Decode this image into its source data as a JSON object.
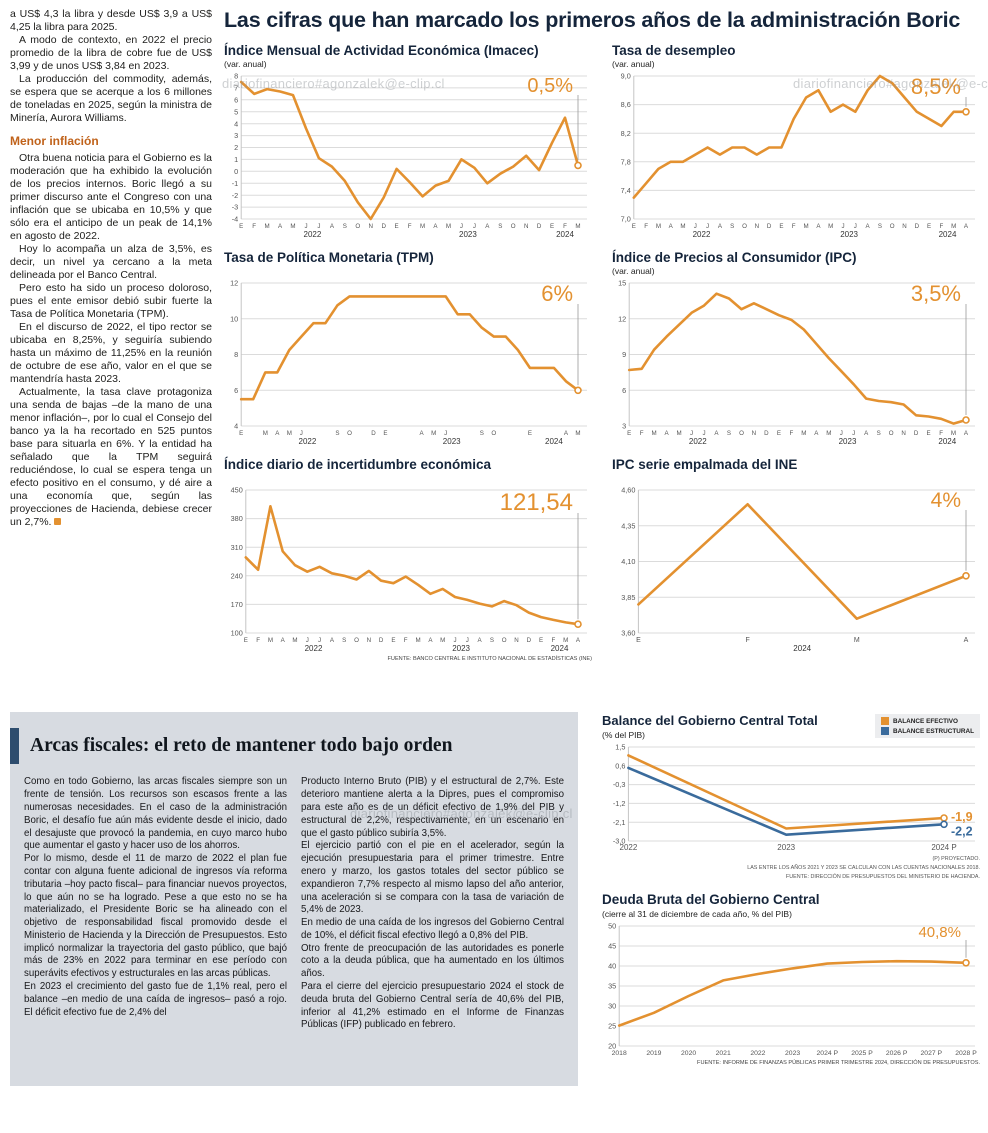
{
  "watermark": "diariofinanciero#agonzalek@e-clip.cl",
  "colors": {
    "orange": "#E39130",
    "blue": "#3A6B9C",
    "navy": "#15253B",
    "subhead_orange": "#C0621A",
    "gray_box": "#D7DBE1",
    "title_bar": "#2E4D6E"
  },
  "headline": "Las cifras que han marcado los primeros años de la administración Boric",
  "left_column": {
    "paragraphs": [
      "a US$ 4,3 la libra y desde US$ 3,9 a US$ 4,25 la libra para 2025.",
      "A modo de contexto, en 2022 el precio promedio de la libra de cobre fue de US$ 3,99 y de unos US$ 3,84 en 2023.",
      "La producción del commodity, además, se espera que se acerque a los 6 millones de toneladas en 2025, según la ministra de Minería, Aurora Williams."
    ],
    "subhead": "Menor inflación",
    "paragraphs2": [
      "Otra buena noticia para el Gobierno es la moderación que ha exhibido la evolución de los precios internos. Boric llegó a su primer discurso ante el Congreso con una inflación que se ubicaba en 10,5% y que sólo era el anticipo de un peak de 14,1% en agosto de 2022.",
      "Hoy lo acompaña un alza de 3,5%, es decir, un nivel ya cercano a la meta delineada por el Banco Central.",
      "Pero esto ha sido un proceso doloroso, pues el ente emisor debió subir fuerte la Tasa de Política Monetaria (TPM).",
      "En el discurso de 2022, el tipo rector se ubicaba en 8,25%, y seguiría subiendo hasta un máximo de 11,25% en la reunión de octubre de ese año, valor en el que se mantendría hasta 2023.",
      "Actualmente, la tasa clave protagoniza una senda de bajas –de la mano de una menor inflación–, por lo cual el Consejo del banco ya la ha recortado en 525 puntos base para situarla en 6%. Y la entidad ha señalado que la TPM seguirá reduciéndose, lo cual se espera tenga un efecto positivo en el consumo, y dé aire a una economía que, según las proyecciones de Hacienda, debiese crecer un 2,7%."
    ]
  },
  "fiscal_box": {
    "title": "Arcas fiscales: el reto de mantener todo bajo orden",
    "col1": [
      "Como en todo Gobierno, las arcas fiscales siempre son un frente de tensión. Los recursos son escasos frente a las numerosas necesidades. En el caso de la administración Boric, el desafío fue aún más evidente desde el inicio, dado el desajuste que provocó la pandemia, en cuyo marco hubo que aumentar el gasto y hacer uso de los ahorros.",
      "Por lo mismo, desde el 11 de marzo de 2022 el plan fue contar con alguna fuente adicional de ingresos vía reforma tributaria –hoy pacto fiscal– para financiar nuevos proyectos, lo que aún no se ha logrado. Pese a que esto no se ha materializado, el Presidente Boric se ha alineado con el objetivo de responsabilidad fiscal promovido desde el Ministerio de Hacienda y la Dirección de Presupuestos. Esto implicó normalizar la trayectoria del gasto público, que bajó más de 23% en 2022 para terminar en ese período con superávits efectivos y estructurales en las arcas públicas.",
      "En 2023 el crecimiento del gasto fue de 1,1% real, pero el balance –en medio de una caída de ingresos– pasó a rojo. El déficit efectivo fue de 2,4% del"
    ],
    "col2": [
      "Producto Interno Bruto (PIB) y el estructural de 2,7%. Este deterioro mantiene alerta a la Dipres, pues el compromiso para este año es de un déficit efectivo de 1,9% del PIB y estructural de 2,2%, respectivamente, en un escenario en que el gasto público subiría 3,5%.",
      "El ejercicio partió con el pie en el acelerador, según la ejecución presupuestaria para el primer trimestre. Entre enero y marzo, los gastos totales del sector público se expandieron 7,7% respecto al mismo lapso del año anterior, una aceleración si se compara con la tasa de variación de 5,4% de 2023.",
      "En medio de una caída de los ingresos del Gobierno Central de 10%, el déficit fiscal efectivo llegó a 0,8% del PIB.",
      "Otro frente de preocupación de las autoridades es ponerle coto a la deuda pública, que ha aumentado en los últimos años.",
      "Para el cierre del ejercicio presupuestario 2024 el stock de deuda bruta del Gobierno Central sería de 40,6% del PIB, inferior al 41,2% estimado en el Informe de Finanzas Públicas (IFP) publicado en febrero."
    ]
  },
  "chart_data": [
    {
      "id": "imacec",
      "type": "line",
      "title": "Índice Mensual de Actividad Económica (Imacec)",
      "subtitle": "(var. anual)",
      "ylim": [
        -4,
        8
      ],
      "yticks": [
        8,
        7,
        6,
        5,
        4,
        3,
        2,
        1,
        0,
        -1,
        -2,
        -3,
        -4
      ],
      "x": [
        "E",
        "F",
        "M",
        "A",
        "M",
        "J",
        "J",
        "A",
        "S",
        "O",
        "N",
        "D",
        "E",
        "F",
        "M",
        "A",
        "M",
        "J",
        "J",
        "A",
        "S",
        "O",
        "N",
        "D",
        "E",
        "F",
        "M"
      ],
      "years": [
        {
          "label": "2022",
          "start": 0,
          "end": 11
        },
        {
          "label": "2023",
          "start": 12,
          "end": 23
        },
        {
          "label": "2024",
          "start": 24,
          "end": 26
        }
      ],
      "values": [
        7.5,
        6.5,
        6.9,
        6.7,
        6.4,
        3.6,
        1.1,
        0.4,
        -0.8,
        -2.6,
        -4.0,
        -2.2,
        0.2,
        -0.9,
        -2.1,
        -1.2,
        -0.8,
        1.0,
        0.3,
        -1.0,
        -0.2,
        0.4,
        1.3,
        0.1,
        2.4,
        4.5,
        0.5
      ],
      "callout": "0,5%",
      "callout_size": 20
    },
    {
      "id": "desempleo",
      "type": "line",
      "title": "Tasa de desempleo",
      "subtitle": "(var. anual)",
      "ylim": [
        7.0,
        9.0
      ],
      "yticks": [
        9.0,
        8.6,
        8.2,
        7.8,
        7.4,
        7.0
      ],
      "ytick_labels": [
        "9,0",
        "8,6",
        "8,2",
        "7,8",
        "7,4",
        "7,0"
      ],
      "x": [
        "E",
        "F",
        "M",
        "A",
        "M",
        "J",
        "J",
        "A",
        "S",
        "O",
        "N",
        "D",
        "E",
        "F",
        "M",
        "A",
        "M",
        "J",
        "J",
        "A",
        "S",
        "O",
        "N",
        "D",
        "E",
        "F",
        "M",
        "A"
      ],
      "years": [
        {
          "label": "2022",
          "start": 0,
          "end": 11
        },
        {
          "label": "2023",
          "start": 12,
          "end": 23
        },
        {
          "label": "2024",
          "start": 24,
          "end": 27
        }
      ],
      "values": [
        7.3,
        7.5,
        7.7,
        7.8,
        7.8,
        7.9,
        8.0,
        7.9,
        8.0,
        8.0,
        7.9,
        8.0,
        8.0,
        8.4,
        8.7,
        8.8,
        8.5,
        8.6,
        8.5,
        8.8,
        9.0,
        8.9,
        8.7,
        8.5,
        8.4,
        8.3,
        8.5,
        8.5
      ],
      "callout": "8,5%",
      "callout_size": 22
    },
    {
      "id": "tpm",
      "type": "line",
      "title": "Tasa de Política Monetaria (TPM)",
      "ylim": [
        4,
        12
      ],
      "yticks": [
        12,
        10,
        8,
        6,
        4
      ],
      "x": [
        "E",
        "",
        "M",
        "A",
        "M",
        "J",
        "",
        "",
        "S",
        "O",
        "",
        "D",
        "E",
        "",
        "",
        "A",
        "M",
        "J",
        "",
        "",
        "S",
        "O",
        "",
        "",
        "E",
        "",
        "",
        "A",
        "M"
      ],
      "years": [
        {
          "label": "2022",
          "start": 0,
          "end": 11
        },
        {
          "label": "2023",
          "start": 12,
          "end": 23
        },
        {
          "label": "2024",
          "start": 24,
          "end": 28
        }
      ],
      "values": [
        5.5,
        5.5,
        7.0,
        7.0,
        8.25,
        9.0,
        9.75,
        9.75,
        10.75,
        11.25,
        11.25,
        11.25,
        11.25,
        11.25,
        11.25,
        11.25,
        11.25,
        11.25,
        10.25,
        10.25,
        9.5,
        9.0,
        9.0,
        8.25,
        7.25,
        7.25,
        7.25,
        6.5,
        6.0
      ],
      "callout": "6%",
      "callout_size": 22
    },
    {
      "id": "ipc",
      "type": "line",
      "title": "Índice de Precios al Consumidor (IPC)",
      "subtitle": "(var. anual)",
      "ylim": [
        3,
        15
      ],
      "yticks": [
        15,
        12,
        9,
        6,
        3
      ],
      "x": [
        "E",
        "F",
        "M",
        "A",
        "M",
        "J",
        "J",
        "A",
        "S",
        "O",
        "N",
        "D",
        "E",
        "F",
        "M",
        "A",
        "M",
        "J",
        "J",
        "A",
        "S",
        "O",
        "N",
        "D",
        "E",
        "F",
        "M",
        "A"
      ],
      "years": [
        {
          "label": "2022",
          "start": 0,
          "end": 11
        },
        {
          "label": "2023",
          "start": 12,
          "end": 23
        },
        {
          "label": "2024",
          "start": 24,
          "end": 27
        }
      ],
      "values": [
        7.7,
        7.8,
        9.4,
        10.5,
        11.5,
        12.5,
        13.1,
        14.1,
        13.7,
        12.8,
        13.3,
        12.8,
        12.3,
        11.9,
        11.1,
        9.9,
        8.7,
        7.6,
        6.5,
        5.3,
        5.1,
        5.0,
        4.8,
        3.9,
        3.8,
        3.6,
        3.2,
        3.5
      ],
      "callout": "3,5%",
      "callout_size": 22
    },
    {
      "id": "incertidumbre",
      "type": "line",
      "title": "Índice diario de incertidumbre económica",
      "ylim": [
        100,
        450
      ],
      "yticks": [
        450,
        380,
        310,
        240,
        170,
        100
      ],
      "x": [
        "E",
        "F",
        "M",
        "A",
        "M",
        "J",
        "J",
        "A",
        "S",
        "O",
        "N",
        "D",
        "E",
        "F",
        "M",
        "A",
        "M",
        "J",
        "J",
        "A",
        "S",
        "O",
        "N",
        "D",
        "E",
        "F",
        "M",
        "A"
      ],
      "years": [
        {
          "label": "2022",
          "start": 0,
          "end": 11
        },
        {
          "label": "2023",
          "start": 12,
          "end": 23
        },
        {
          "label": "2024",
          "start": 24,
          "end": 27
        }
      ],
      "values": [
        285,
        255,
        410,
        300,
        266,
        250,
        262,
        246,
        240,
        231,
        252,
        228,
        222,
        238,
        218,
        196,
        208,
        188,
        181,
        172,
        165,
        178,
        168,
        150,
        139,
        132,
        126,
        121.54
      ],
      "callout": "121,54",
      "callout_size": 24,
      "source": "FUENTE: BANCO CENTRAL E INSTITUTO NACIONAL DE ESTADÍSTICAS (INE)"
    },
    {
      "id": "ipc-empalmada",
      "type": "line",
      "title": "IPC serie empalmada del INE",
      "ylim": [
        3.6,
        4.6
      ],
      "yticks": [
        4.6,
        4.35,
        4.1,
        3.85,
        3.6
      ],
      "ytick_labels": [
        "4,60",
        "4,35",
        "4,10",
        "3,85",
        "3,60"
      ],
      "x": [
        "E",
        "F",
        "M",
        "A"
      ],
      "xfs": 7,
      "years": [
        {
          "label": "2024",
          "start": 0,
          "end": 3
        }
      ],
      "values": [
        3.8,
        4.5,
        3.7,
        4.0
      ],
      "callout": "4%",
      "callout_size": 21
    },
    {
      "id": "balance",
      "type": "line",
      "title": "Balance del Gobierno Central Total",
      "subtitle": "(% del PIB)",
      "ylim": [
        -3.0,
        1.5
      ],
      "yticks": [
        1.5,
        0.6,
        -0.3,
        -1.2,
        -2.1,
        -3.0
      ],
      "ytick_labels": [
        "1,5",
        "0,6",
        "-0,3",
        "-1,2",
        "-2,1",
        "-3,0"
      ],
      "x": [
        "2022",
        "2023",
        "2024 P"
      ],
      "xfs": 8,
      "series": [
        {
          "name": "BALANCE EFECTIVO",
          "color": "#E39130",
          "values": [
            1.1,
            -2.4,
            -1.9
          ],
          "callout": "-1,9"
        },
        {
          "name": "BALANCE ESTRUCTURAL",
          "color": "#3A6B9C",
          "values": [
            0.5,
            -2.7,
            -2.2
          ],
          "callout": "-2,2"
        }
      ],
      "footnotes": [
        "(P) PROYECTADO.",
        "LAS ENTRE LOS AÑOS 2021 Y 2023 SE CALCULAN CON LAS CUENTAS NACIONALES 2018.",
        "FUENTE: DIRECCIÓN DE PRESUPUESTOS DEL MINISTERIO DE HACIENDA."
      ]
    },
    {
      "id": "deuda",
      "type": "line",
      "title": "Deuda Bruta del Gobierno Central",
      "subtitle": "(cierre al 31 de diciembre de cada año, % del PIB)",
      "ylim": [
        20,
        50
      ],
      "yticks": [
        50,
        45,
        40,
        35,
        30,
        25,
        20
      ],
      "x": [
        "2018",
        "2019",
        "2020",
        "2021",
        "2022",
        "2023",
        "2024 P",
        "2025 P",
        "2026 P",
        "2027 P",
        "2028 P"
      ],
      "xfs": 6.8,
      "values": [
        25.1,
        28.3,
        32.5,
        36.4,
        38.0,
        39.4,
        40.6,
        41.0,
        41.2,
        41.1,
        40.8
      ],
      "callout": "40,8%",
      "callout_size": 15,
      "source": "FUENTE: INFORME DE FINANZAS PÚBLICAS PRIMER TRIMESTRE 2024, DIRECCIÓN DE PRESUPUESTOS."
    }
  ]
}
